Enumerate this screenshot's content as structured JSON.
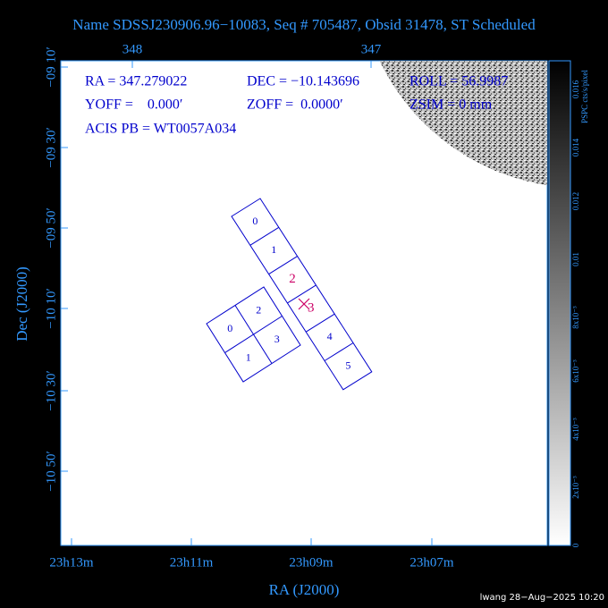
{
  "header": {
    "title": "Name SDSSJ230906.96−10083, Seq # 705487, Obsid 31478, ST Scheduled"
  },
  "info": {
    "ra": "RA = 347.279022",
    "dec": "DEC = −10.143696",
    "roll": "ROLL = 56.9987",
    "yoff": "YOFF =    0.000′",
    "zoff": "ZOFF =  0.0000′",
    "zsim": "ZSIM = 0 mm",
    "acis": "ACIS PB = WT0057A034"
  },
  "axes": {
    "top_ticks": [
      "348",
      "347"
    ],
    "left_ticks": [
      "−09 10′",
      "−09 30′",
      "−09 50′",
      "−10 10′",
      "−10 30′",
      "−10 50′"
    ],
    "bottom_ticks": [
      "23h13m",
      "23h11m",
      "23h09m",
      "23h07m"
    ],
    "x_label": "RA (J2000)",
    "y_label": "Dec (J2000)"
  },
  "colorbar": {
    "label": "PSPC cts/s/pixel",
    "ticks": [
      "0",
      "2x10⁻³",
      "4x10⁻³",
      "6x10⁻³",
      "8x10⁻³",
      "0.01",
      "0.012",
      "0.014",
      "0.016"
    ]
  },
  "ccds": {
    "s_array": [
      "0",
      "1",
      "2",
      "3",
      "4",
      "5"
    ],
    "i_array": [
      "0",
      "2",
      "3",
      "1"
    ]
  },
  "footer": "lwang 28−Aug−2025 10:20"
}
